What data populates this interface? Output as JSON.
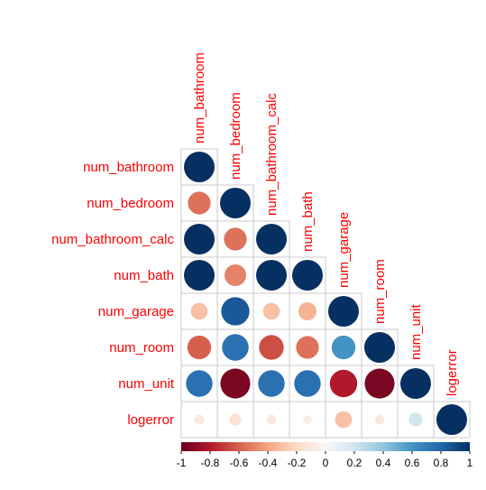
{
  "chart_data": {
    "type": "heatmap",
    "subtype": "correlation-matrix-lower-circles",
    "variables": [
      "num_bathroom",
      "num_bedroom",
      "num_bathroom_calc",
      "num_bath",
      "num_garage",
      "num_room",
      "num_unit",
      "logerror"
    ],
    "matrix": [
      [
        1.0
      ],
      [
        -0.55,
        1.0
      ],
      [
        1.0,
        -0.55,
        1.0
      ],
      [
        1.0,
        -0.5,
        1.0,
        1.0
      ],
      [
        -0.3,
        0.85,
        -0.3,
        -0.35,
        1.0
      ],
      [
        -0.6,
        0.75,
        -0.65,
        -0.55,
        0.6,
        1.0
      ],
      [
        0.75,
        -0.95,
        0.75,
        0.75,
        -0.8,
        -0.95,
        1.0
      ],
      [
        -0.1,
        -0.15,
        -0.1,
        -0.08,
        -0.3,
        -0.1,
        0.2,
        1.0
      ]
    ],
    "colorbar": {
      "range": [
        -1,
        1
      ],
      "tick_labels": [
        "-1",
        "-0.8",
        "-0.6",
        "-0.4",
        "-0.2",
        "0",
        "0.2",
        "0.4",
        "0.6",
        "0.8",
        "1"
      ],
      "low_color": "#67001f",
      "mid_color": "#f7f7f7",
      "high_color": "#053061",
      "placement": "bottom"
    },
    "label_color": "#ff0000",
    "grid": true
  }
}
